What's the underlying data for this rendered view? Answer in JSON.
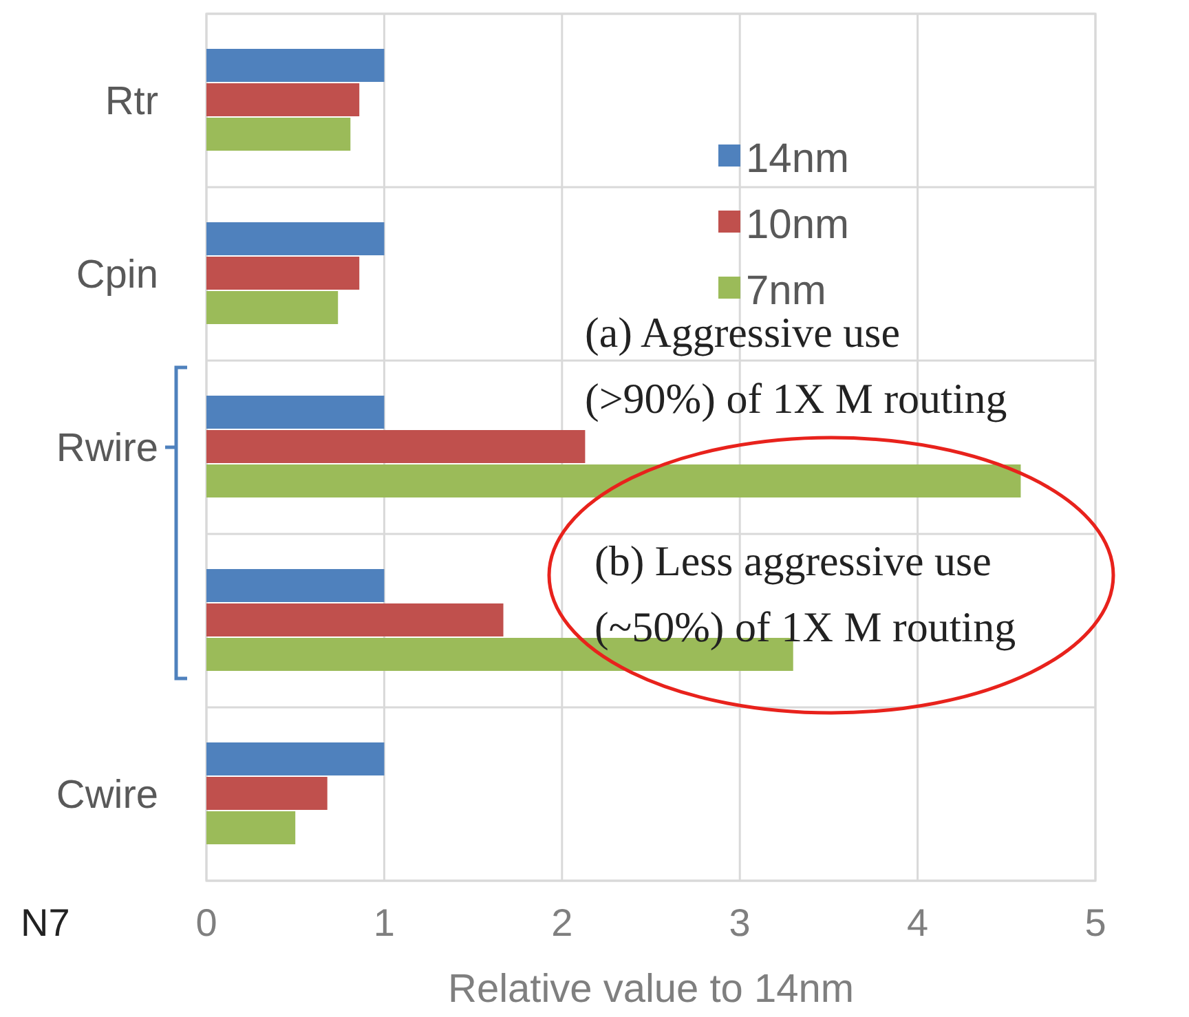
{
  "chart_data": {
    "type": "bar",
    "orientation": "horizontal",
    "categories": [
      "Rtr",
      "Cpin",
      "Rwire",
      null,
      "Cwire"
    ],
    "series": [
      {
        "name": "14nm",
        "color": "#4f81bd",
        "values": [
          1.0,
          1.0,
          1.0,
          1.0,
          1.0
        ]
      },
      {
        "name": "10nm",
        "color": "#c0504d",
        "values": [
          0.86,
          0.86,
          2.13,
          1.67,
          0.68
        ]
      },
      {
        "name": "7nm",
        "color": "#9bbb59",
        "values": [
          0.81,
          0.74,
          4.58,
          3.3,
          0.5
        ]
      }
    ],
    "xlim": [
      0,
      5
    ],
    "xticks": [
      0,
      1,
      2,
      3,
      4,
      5
    ],
    "xlabel": "Relative value to 14nm",
    "grid": true,
    "legend": "top right",
    "annotations": [
      "N7",
      "(a) Aggressive use\n(>90%) of 1X M routing",
      "(b) Less aggressive use\n(~50%) of 1X M routing"
    ]
  }
}
